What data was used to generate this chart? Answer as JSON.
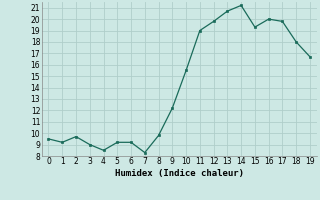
{
  "x": [
    0,
    1,
    2,
    3,
    4,
    5,
    6,
    7,
    8,
    9,
    10,
    11,
    12,
    13,
    14,
    15,
    16,
    17,
    18,
    19
  ],
  "y": [
    9.5,
    9.2,
    9.7,
    9.0,
    8.5,
    9.2,
    9.2,
    8.3,
    9.8,
    12.2,
    15.5,
    19.0,
    19.8,
    20.7,
    21.2,
    19.3,
    20.0,
    19.8,
    18.0,
    16.7
  ],
  "line_color": "#1a6b5a",
  "marker_color": "#1a6b5a",
  "bg_color": "#cde8e4",
  "grid_color": "#b0ceca",
  "xlabel": "Humidex (Indice chaleur)",
  "xlim": [
    -0.5,
    19.5
  ],
  "ylim": [
    8,
    21.5
  ],
  "yticks": [
    8,
    9,
    10,
    11,
    12,
    13,
    14,
    15,
    16,
    17,
    18,
    19,
    20,
    21
  ],
  "xticks": [
    0,
    1,
    2,
    3,
    4,
    5,
    6,
    7,
    8,
    9,
    10,
    11,
    12,
    13,
    14,
    15,
    16,
    17,
    18,
    19
  ]
}
